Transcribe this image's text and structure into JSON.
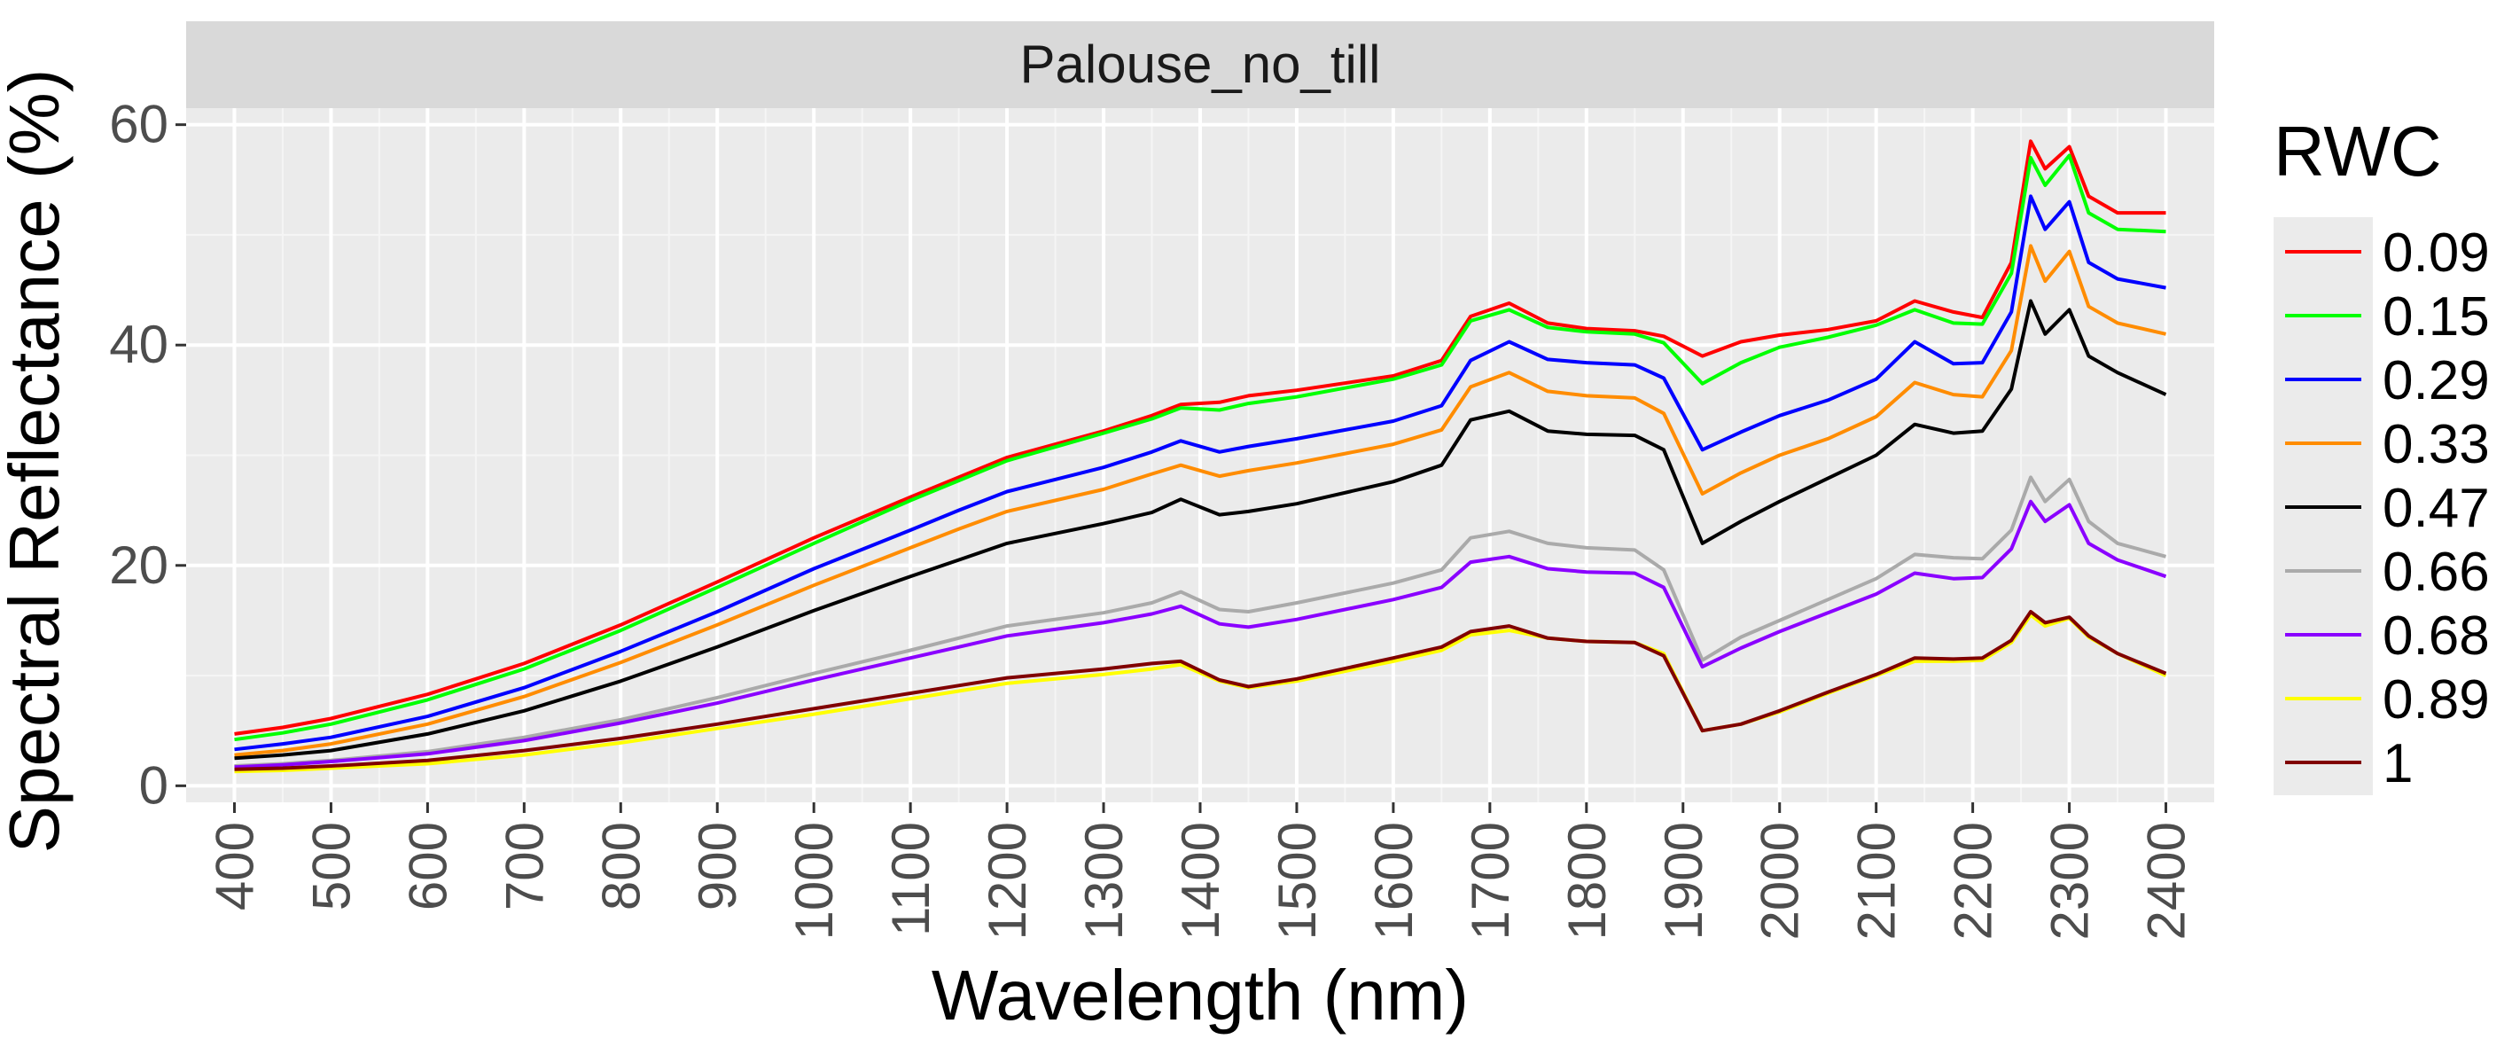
{
  "chart_data": {
    "type": "line",
    "facet_title": "Palouse_no_till",
    "xlabel": "Wavelength (nm)",
    "ylabel": "Spectral Reflectance (%)",
    "xlim": [
      350,
      2450
    ],
    "ylim": [
      -1.5,
      61.5
    ],
    "xticks": [
      400,
      500,
      600,
      700,
      800,
      900,
      1000,
      1100,
      1200,
      1300,
      1400,
      1500,
      1600,
      1700,
      1800,
      1900,
      2000,
      2100,
      2200,
      2300,
      2400
    ],
    "yticks": [
      0,
      20,
      40,
      60
    ],
    "grid": true,
    "legend_title": "RWC",
    "legend_position": "right",
    "x": [
      400,
      450,
      500,
      600,
      700,
      800,
      900,
      1000,
      1100,
      1150,
      1200,
      1300,
      1350,
      1380,
      1420,
      1450,
      1500,
      1600,
      1650,
      1680,
      1720,
      1760,
      1800,
      1850,
      1880,
      1920,
      1960,
      2000,
      2050,
      2100,
      2140,
      2180,
      2210,
      2240,
      2260,
      2275,
      2300,
      2320,
      2350,
      2400
    ],
    "series": [
      {
        "name": "0.09",
        "color": "#ff0000",
        "values": [
          4.7,
          5.3,
          6.1,
          8.3,
          11.1,
          14.6,
          18.5,
          22.5,
          26.2,
          28.0,
          29.8,
          32.2,
          33.6,
          34.6,
          34.8,
          35.4,
          35.9,
          37.2,
          38.6,
          42.6,
          43.8,
          42.0,
          41.5,
          41.3,
          40.8,
          39.0,
          40.3,
          40.9,
          41.4,
          42.2,
          44.0,
          43.0,
          42.5,
          47.5,
          58.5,
          56.0,
          58.0,
          53.5,
          52.0,
          52.0
        ]
      },
      {
        "name": "0.15",
        "color": "#00ff00",
        "values": [
          4.2,
          4.8,
          5.6,
          7.8,
          10.6,
          14.1,
          18.0,
          22.0,
          25.9,
          27.7,
          29.5,
          32.0,
          33.3,
          34.3,
          34.1,
          34.7,
          35.3,
          36.9,
          38.2,
          42.2,
          43.2,
          41.6,
          41.2,
          41.0,
          40.2,
          36.5,
          38.4,
          39.8,
          40.7,
          41.8,
          43.2,
          42.0,
          41.9,
          46.5,
          57.0,
          54.5,
          57.2,
          52.0,
          50.5,
          50.3
        ]
      },
      {
        "name": "0.29",
        "color": "#0000ff",
        "values": [
          3.3,
          3.8,
          4.4,
          6.3,
          8.9,
          12.2,
          15.8,
          19.7,
          23.2,
          25.0,
          26.7,
          28.9,
          30.3,
          31.3,
          30.3,
          30.8,
          31.5,
          33.1,
          34.5,
          38.6,
          40.3,
          38.7,
          38.4,
          38.2,
          37.0,
          30.5,
          32.1,
          33.6,
          35.0,
          36.9,
          40.3,
          38.3,
          38.4,
          43.0,
          53.5,
          50.5,
          53.0,
          47.5,
          46.0,
          45.2
        ]
      },
      {
        "name": "0.33",
        "color": "#ff8c00",
        "values": [
          2.8,
          3.2,
          3.8,
          5.6,
          8.1,
          11.2,
          14.6,
          18.2,
          21.6,
          23.3,
          24.9,
          26.9,
          28.3,
          29.1,
          28.1,
          28.6,
          29.3,
          31.0,
          32.3,
          36.2,
          37.5,
          35.8,
          35.4,
          35.2,
          33.8,
          26.5,
          28.4,
          30.0,
          31.5,
          33.5,
          36.6,
          35.5,
          35.3,
          39.5,
          49.0,
          45.8,
          48.5,
          43.5,
          42.0,
          41.0
        ]
      },
      {
        "name": "0.47",
        "color": "#000000",
        "values": [
          2.5,
          2.8,
          3.2,
          4.7,
          6.8,
          9.5,
          12.6,
          15.9,
          19.0,
          20.5,
          22.0,
          23.8,
          24.8,
          26.0,
          24.6,
          24.9,
          25.6,
          27.6,
          29.1,
          33.2,
          34.0,
          32.2,
          31.9,
          31.8,
          30.5,
          22.0,
          24.0,
          25.8,
          27.9,
          30.0,
          32.8,
          32.0,
          32.2,
          36.0,
          44.0,
          41.0,
          43.2,
          39.0,
          37.5,
          35.5
        ]
      },
      {
        "name": "0.66",
        "color": "#aaaaaa",
        "values": [
          1.8,
          2.0,
          2.3,
          3.1,
          4.4,
          6.0,
          8.0,
          10.2,
          12.3,
          13.4,
          14.5,
          15.7,
          16.6,
          17.6,
          16.0,
          15.8,
          16.6,
          18.4,
          19.6,
          22.5,
          23.1,
          22.0,
          21.6,
          21.4,
          19.6,
          11.4,
          13.5,
          15.0,
          16.9,
          18.8,
          21.0,
          20.7,
          20.6,
          23.2,
          28.0,
          25.8,
          27.8,
          24.0,
          22.0,
          20.8
        ]
      },
      {
        "name": "0.68",
        "color": "#8a00ff",
        "values": [
          1.7,
          1.9,
          2.2,
          2.9,
          4.1,
          5.7,
          7.5,
          9.6,
          11.6,
          12.6,
          13.6,
          14.8,
          15.6,
          16.3,
          14.7,
          14.4,
          15.1,
          16.9,
          18.0,
          20.3,
          20.8,
          19.7,
          19.4,
          19.3,
          18.0,
          10.8,
          12.5,
          14.0,
          15.7,
          17.4,
          19.3,
          18.8,
          18.9,
          21.5,
          25.8,
          24.0,
          25.5,
          22.0,
          20.5,
          19.0
        ]
      },
      {
        "name": "0.89",
        "color": "#ffff00",
        "values": [
          1.3,
          1.4,
          1.6,
          2.0,
          2.8,
          3.9,
          5.2,
          6.5,
          7.9,
          8.6,
          9.3,
          10.1,
          10.6,
          11.0,
          9.5,
          8.9,
          9.5,
          11.3,
          12.3,
          13.7,
          14.1,
          13.4,
          13.1,
          13.0,
          12.0,
          5.0,
          5.6,
          6.7,
          8.4,
          10.0,
          11.3,
          11.3,
          11.4,
          13.0,
          15.5,
          14.5,
          15.2,
          13.5,
          12.0,
          10.0
        ]
      },
      {
        "name": "1",
        "color": "#800000",
        "values": [
          1.5,
          1.6,
          1.8,
          2.3,
          3.2,
          4.3,
          5.6,
          7.0,
          8.4,
          9.1,
          9.8,
          10.6,
          11.1,
          11.3,
          9.6,
          9.0,
          9.7,
          11.6,
          12.6,
          14.0,
          14.5,
          13.4,
          13.1,
          13.0,
          11.8,
          5.0,
          5.6,
          6.8,
          8.5,
          10.1,
          11.6,
          11.5,
          11.6,
          13.2,
          15.8,
          14.8,
          15.3,
          13.6,
          12.0,
          10.2
        ]
      }
    ]
  }
}
